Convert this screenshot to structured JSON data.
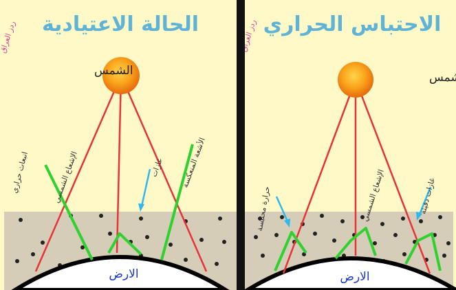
{
  "panels": {
    "normal": {
      "title": "الحالة الاعتيادية",
      "watermark": "ردز العراق",
      "sun_label": "الشمس",
      "earth_label": "الارض",
      "labels": {
        "emitted_heat": "انبعاث حراري",
        "solar_radiation": "الإشعاع الشمسي",
        "gases": "غازات",
        "reflected_rays": "الأشعة المنعكسة"
      }
    },
    "greenhouse": {
      "title": "الاحتباس الحراري",
      "watermark": "ردز العراق",
      "sun_label": "الشمس",
      "earth_label": "الارض",
      "labels": {
        "trapped_heat": "حرارة محتبسة",
        "solar_radiation": "الإشعاع الشمسي",
        "greenhouse_gases": "غازات دفيئة"
      }
    }
  },
  "colors": {
    "background": "#fff9c8",
    "atmosphere": "#d6cdb8",
    "divider": "#111111",
    "solar_ray": "#e8323a",
    "heat_ray": "#2fd12f",
    "pointer_arrow": "#2fb8ee",
    "title": "#5fb3d6",
    "earth_label": "#1a36c8"
  }
}
